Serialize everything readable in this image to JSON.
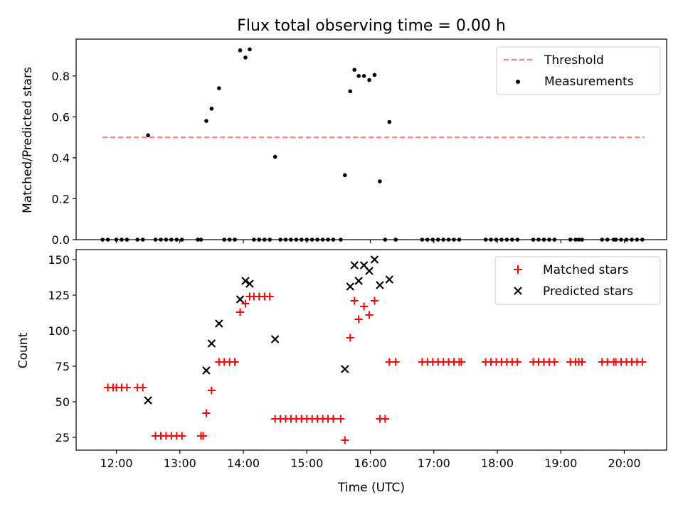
{
  "chart_data": [
    {
      "type": "scatter",
      "title": "Flux total observing time = 0.00 h",
      "xlabel": "",
      "ylabel": "Matched/Predicted stars",
      "ylim": [
        0,
        0.98
      ],
      "yticks": [
        0.0,
        0.2,
        0.4,
        0.6,
        0.8
      ],
      "ytick_labels": [
        "0.0",
        "0.2",
        "0.4",
        "0.6",
        "0.8"
      ],
      "grid": false,
      "legend_position": "top-right",
      "series": [
        {
          "name": "Threshold",
          "kind": "line",
          "style": "dashed",
          "color": "#ff7f7f",
          "x": [
            "11:47",
            "20:19"
          ],
          "y": [
            0.5,
            0.5
          ]
        },
        {
          "name": "Measurements",
          "kind": "scatter",
          "color": "#000000",
          "points": [
            [
              "11:47",
              0
            ],
            [
              "11:52",
              0
            ],
            [
              "12:00",
              0
            ],
            [
              "12:05",
              0
            ],
            [
              "12:10",
              0
            ],
            [
              "12:20",
              0
            ],
            [
              "12:25",
              0
            ],
            [
              "12:30",
              0.51
            ],
            [
              "12:37",
              0
            ],
            [
              "12:42",
              0
            ],
            [
              "12:47",
              0
            ],
            [
              "12:52",
              0
            ],
            [
              "12:57",
              0
            ],
            [
              "13:02",
              0
            ],
            [
              "13:17",
              0
            ],
            [
              "13:20",
              0
            ],
            [
              "13:25",
              0.58
            ],
            [
              "13:30",
              0.64
            ],
            [
              "13:37",
              0.74
            ],
            [
              "13:42",
              0
            ],
            [
              "13:47",
              0
            ],
            [
              "13:52",
              0
            ],
            [
              "13:57",
              0.925
            ],
            [
              "14:02",
              0.89
            ],
            [
              "14:06",
              0.93
            ],
            [
              "14:10",
              0
            ],
            [
              "14:15",
              0
            ],
            [
              "14:20",
              0
            ],
            [
              "14:25",
              0
            ],
            [
              "14:30",
              0.405
            ],
            [
              "14:35",
              0
            ],
            [
              "14:40",
              0
            ],
            [
              "14:45",
              0
            ],
            [
              "14:50",
              0
            ],
            [
              "14:55",
              0
            ],
            [
              "15:00",
              0
            ],
            [
              "15:05",
              0
            ],
            [
              "15:10",
              0
            ],
            [
              "15:15",
              0
            ],
            [
              "15:20",
              0
            ],
            [
              "15:25",
              0
            ],
            [
              "15:32",
              0
            ],
            [
              "15:36",
              0.315
            ],
            [
              "15:41",
              0.725
            ],
            [
              "15:45",
              0.83
            ],
            [
              "15:49",
              0.8
            ],
            [
              "15:54",
              0.8
            ],
            [
              "15:59",
              0.78
            ],
            [
              "16:04",
              0.805
            ],
            [
              "16:09",
              0.285
            ],
            [
              "16:14",
              0
            ],
            [
              "16:18",
              0.575
            ],
            [
              "16:24",
              0
            ],
            [
              "16:49",
              0
            ],
            [
              "16:54",
              0
            ],
            [
              "16:59",
              0
            ],
            [
              "17:04",
              0
            ],
            [
              "17:09",
              0
            ],
            [
              "17:14",
              0
            ],
            [
              "17:19",
              0
            ],
            [
              "17:24",
              0
            ],
            [
              "17:49",
              0
            ],
            [
              "17:54",
              0
            ],
            [
              "17:59",
              0
            ],
            [
              "18:04",
              0
            ],
            [
              "18:09",
              0
            ],
            [
              "18:14",
              0
            ],
            [
              "18:19",
              0
            ],
            [
              "18:34",
              0
            ],
            [
              "18:39",
              0
            ],
            [
              "18:44",
              0
            ],
            [
              "18:49",
              0
            ],
            [
              "18:54",
              0
            ],
            [
              "19:09",
              0
            ],
            [
              "19:14",
              0
            ],
            [
              "19:17",
              0
            ],
            [
              "19:20",
              0
            ],
            [
              "19:39",
              0
            ],
            [
              "19:44",
              0
            ],
            [
              "19:50",
              0
            ],
            [
              "19:52",
              0
            ],
            [
              "19:57",
              0
            ],
            [
              "20:02",
              0
            ],
            [
              "20:07",
              0
            ],
            [
              "20:12",
              0
            ],
            [
              "20:17",
              0
            ]
          ]
        }
      ]
    },
    {
      "type": "scatter",
      "title": "",
      "xlabel": "Time (UTC)",
      "ylabel": "Count",
      "xlim": [
        "11:22",
        "20:40"
      ],
      "ylim": [
        16,
        157
      ],
      "xticks": [
        "12:00",
        "13:00",
        "14:00",
        "15:00",
        "16:00",
        "17:00",
        "18:00",
        "19:00",
        "20:00"
      ],
      "yticks": [
        25,
        50,
        75,
        100,
        125,
        150
      ],
      "ytick_labels": [
        "25",
        "50",
        "75",
        "100",
        "125",
        "150"
      ],
      "grid": false,
      "legend_position": "top-right",
      "series": [
        {
          "name": "Matched stars",
          "marker": "+",
          "color": "#ff0000",
          "points": [
            [
              "11:52",
              60
            ],
            [
              "11:57",
              60
            ],
            [
              "12:00",
              60
            ],
            [
              "12:05",
              60
            ],
            [
              "12:10",
              60
            ],
            [
              "12:20",
              60
            ],
            [
              "12:25",
              60
            ],
            [
              "12:37",
              26
            ],
            [
              "12:42",
              26
            ],
            [
              "12:47",
              26
            ],
            [
              "12:52",
              26
            ],
            [
              "12:57",
              26
            ],
            [
              "13:02",
              26
            ],
            [
              "13:20",
              26
            ],
            [
              "13:22",
              26
            ],
            [
              "13:25",
              42
            ],
            [
              "13:30",
              58
            ],
            [
              "13:37",
              78
            ],
            [
              "13:42",
              78
            ],
            [
              "13:47",
              78
            ],
            [
              "13:52",
              78
            ],
            [
              "13:57",
              113
            ],
            [
              "14:02",
              119
            ],
            [
              "14:06",
              124
            ],
            [
              "14:10",
              124
            ],
            [
              "14:15",
              124
            ],
            [
              "14:20",
              124
            ],
            [
              "14:25",
              124
            ],
            [
              "14:30",
              38
            ],
            [
              "14:35",
              38
            ],
            [
              "14:40",
              38
            ],
            [
              "14:45",
              38
            ],
            [
              "14:50",
              38
            ],
            [
              "14:55",
              38
            ],
            [
              "15:00",
              38
            ],
            [
              "15:05",
              38
            ],
            [
              "15:10",
              38
            ],
            [
              "15:15",
              38
            ],
            [
              "15:20",
              38
            ],
            [
              "15:25",
              38
            ],
            [
              "15:32",
              38
            ],
            [
              "15:36",
              23
            ],
            [
              "15:41",
              95
            ],
            [
              "15:45",
              121
            ],
            [
              "15:49",
              108
            ],
            [
              "15:54",
              117
            ],
            [
              "15:59",
              111
            ],
            [
              "16:04",
              121
            ],
            [
              "16:09",
              38
            ],
            [
              "16:14",
              38
            ],
            [
              "16:18",
              78
            ],
            [
              "16:24",
              78
            ],
            [
              "16:49",
              78
            ],
            [
              "16:54",
              78
            ],
            [
              "16:59",
              78
            ],
            [
              "17:04",
              78
            ],
            [
              "17:09",
              78
            ],
            [
              "17:14",
              78
            ],
            [
              "17:19",
              78
            ],
            [
              "17:24",
              78
            ],
            [
              "17:26",
              78
            ],
            [
              "17:49",
              78
            ],
            [
              "17:54",
              78
            ],
            [
              "17:59",
              78
            ],
            [
              "18:04",
              78
            ],
            [
              "18:09",
              78
            ],
            [
              "18:14",
              78
            ],
            [
              "18:19",
              78
            ],
            [
              "18:34",
              78
            ],
            [
              "18:39",
              78
            ],
            [
              "18:44",
              78
            ],
            [
              "18:49",
              78
            ],
            [
              "18:54",
              78
            ],
            [
              "19:09",
              78
            ],
            [
              "19:14",
              78
            ],
            [
              "19:17",
              78
            ],
            [
              "19:20",
              78
            ],
            [
              "19:39",
              78
            ],
            [
              "19:44",
              78
            ],
            [
              "19:50",
              78
            ],
            [
              "19:52",
              78
            ],
            [
              "19:57",
              78
            ],
            [
              "20:02",
              78
            ],
            [
              "20:07",
              78
            ],
            [
              "20:12",
              78
            ],
            [
              "20:17",
              78
            ]
          ]
        },
        {
          "name": "Predicted stars",
          "marker": "x",
          "color": "#000000",
          "points": [
            [
              "12:30",
              51
            ],
            [
              "13:25",
              72
            ],
            [
              "13:30",
              91
            ],
            [
              "13:37",
              105
            ],
            [
              "13:57",
              122
            ],
            [
              "14:02",
              135
            ],
            [
              "14:06",
              133
            ],
            [
              "14:30",
              94
            ],
            [
              "15:36",
              73
            ],
            [
              "15:41",
              131
            ],
            [
              "15:45",
              146
            ],
            [
              "15:49",
              135
            ],
            [
              "15:54",
              146
            ],
            [
              "15:59",
              142
            ],
            [
              "16:04",
              150
            ],
            [
              "16:09",
              132
            ],
            [
              "16:18",
              136
            ]
          ]
        }
      ]
    }
  ]
}
